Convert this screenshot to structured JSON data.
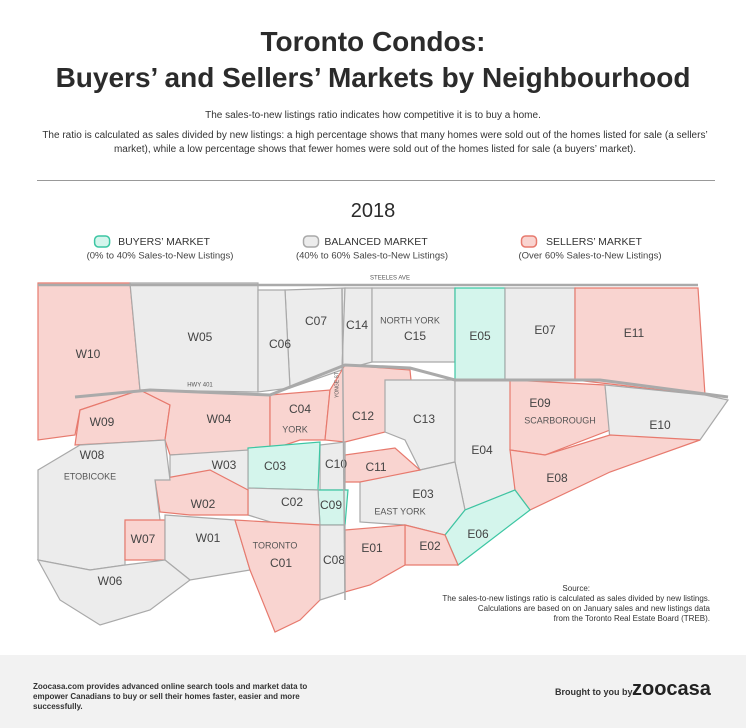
{
  "header": {
    "title_lines": [
      "Toronto Condos:",
      "Buyers’ and Sellers’ Markets by Neighbourhood"
    ],
    "intro": "The sales-to-new listings ratio indicates how competitive it is to buy a home.",
    "explanation": "The ratio is calculated as sales divided by new listings: a high percentage shows that many homes were sold out of the homes listed for sale (a sellers’ market), while a low percentage shows that fewer homes were sold out of the homes listed for sale (a buyers’ market).",
    "year": "2018"
  },
  "legend": {
    "items": [
      {
        "label": "BUYERS’ MARKET",
        "sublabel": "(0% to 40% Sales-to-New Listings)",
        "fill": "#d4f5ec",
        "stroke": "#3cc6a3"
      },
      {
        "label": "BALANCED MARKET",
        "sublabel": "(40% to 60% Sales-to-New Listings)",
        "fill": "#ececec",
        "stroke": "#a9a9a9"
      },
      {
        "label": "SELLERS’ MARKET",
        "sublabel": "(Over 60% Sales-to-New Listings)",
        "fill": "#f9d4d0",
        "stroke": "#e77a6e"
      }
    ]
  },
  "map": {
    "roads": [
      "STEELES AVE",
      "HWY 401",
      "YONGE ST"
    ],
    "area_labels": [
      "NORTH YORK",
      "SCARBOROUGH",
      "YORK",
      "ETOBICOKE",
      "EAST YORK",
      "TORONTO"
    ],
    "districts": [
      {
        "label": "W10",
        "fill": "#f9d4d0"
      },
      {
        "label": "W05",
        "fill": "#ececec"
      },
      {
        "label": "C07",
        "fill": "#ececec"
      },
      {
        "label": "C06",
        "fill": "#ececec"
      },
      {
        "label": "C14",
        "fill": "#ececec"
      },
      {
        "label": "C15",
        "fill": "#ececec"
      },
      {
        "label": "E05",
        "fill": "#d4f5ec"
      },
      {
        "label": "E07",
        "fill": "#ececec"
      },
      {
        "label": "E11",
        "fill": "#f9d4d0"
      },
      {
        "label": "W09",
        "fill": "#f9d4d0"
      },
      {
        "label": "W04",
        "fill": "#f9d4d0"
      },
      {
        "label": "C04",
        "fill": "#f9d4d0"
      },
      {
        "label": "C12",
        "fill": "#f9d4d0"
      },
      {
        "label": "C13",
        "fill": "#ececec"
      },
      {
        "label": "E04",
        "fill": "#ececec"
      },
      {
        "label": "E09",
        "fill": "#f9d4d0"
      },
      {
        "label": "E10",
        "fill": "#ececec"
      },
      {
        "label": "E08",
        "fill": "#f9d4d0"
      },
      {
        "label": "E03",
        "fill": "#ececec"
      },
      {
        "label": "E06",
        "fill": "#d4f5ec"
      },
      {
        "label": "E02",
        "fill": "#f9d4d0"
      },
      {
        "label": "E01",
        "fill": "#f9d4d0"
      },
      {
        "label": "C11",
        "fill": "#f9d4d0"
      },
      {
        "label": "C10",
        "fill": "#ececec"
      },
      {
        "label": "C09",
        "fill": "#d4f5ec"
      },
      {
        "label": "C03",
        "fill": "#d4f5ec"
      },
      {
        "label": "C02",
        "fill": "#ececec"
      },
      {
        "label": "W03",
        "fill": "#ececec"
      },
      {
        "label": "W02",
        "fill": "#f9d4d0"
      },
      {
        "label": "W08",
        "fill": "#ececec"
      },
      {
        "label": "W07",
        "fill": "#f9d4d0"
      },
      {
        "label": "W01",
        "fill": "#ececec"
      },
      {
        "label": "C01",
        "fill": "#f9d4d0"
      },
      {
        "label": "C08",
        "fill": "#ececec"
      },
      {
        "label": "W06",
        "fill": "#ececec"
      }
    ]
  },
  "source": {
    "heading": "Source:",
    "lines": [
      "The sales-to-new listings ratio is calculated as sales divided by new listings.",
      "Calculations are based on on January sales and new listings data",
      "from the Toronto Real Estate Board (TREB)."
    ]
  },
  "footer": {
    "description": "Zoocasa.com provides advanced online search tools and market data to empower Canadians to buy or sell their homes faster, easier and more successfully.",
    "brought_by": "Brought to you by",
    "logo": "zoocasa"
  }
}
